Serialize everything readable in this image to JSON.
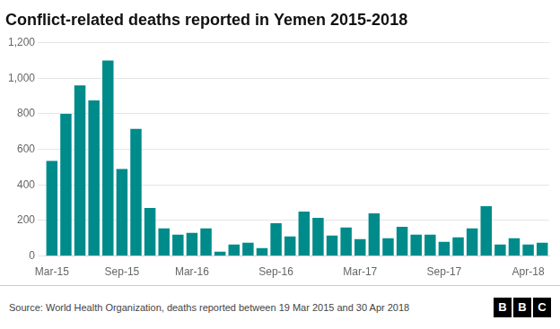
{
  "chart_data": {
    "type": "bar",
    "title": "Conflict-related deaths reported in Yemen 2015-2018",
    "categories": [
      "Mar-15",
      null,
      null,
      null,
      null,
      "Sep-15",
      null,
      null,
      null,
      null,
      "Mar-16",
      null,
      null,
      null,
      null,
      null,
      "Sep-16",
      null,
      null,
      null,
      null,
      null,
      "Mar-17",
      null,
      null,
      null,
      null,
      null,
      "Sep-17",
      null,
      null,
      null,
      null,
      null,
      "Apr-18",
      null
    ],
    "values": [
      535,
      800,
      960,
      875,
      1100,
      490,
      715,
      270,
      155,
      120,
      130,
      155,
      25,
      65,
      75,
      45,
      185,
      110,
      250,
      215,
      115,
      160,
      95,
      240,
      100,
      165,
      120,
      120,
      80,
      105,
      155,
      280,
      65,
      100,
      65,
      75
    ],
    "color": "#008B8B",
    "ylim": [
      0,
      1200
    ],
    "yticks": [
      0,
      200,
      400,
      600,
      800,
      {
        "value": 1000,
        "label": "1,000"
      },
      {
        "value": 1200,
        "label": "1,200"
      }
    ],
    "grid": true,
    "annotations": [
      "Source: World Health Organization, deaths reported between 19 Mar 2015 and 30 Apr 2018",
      "BBC"
    ]
  }
}
